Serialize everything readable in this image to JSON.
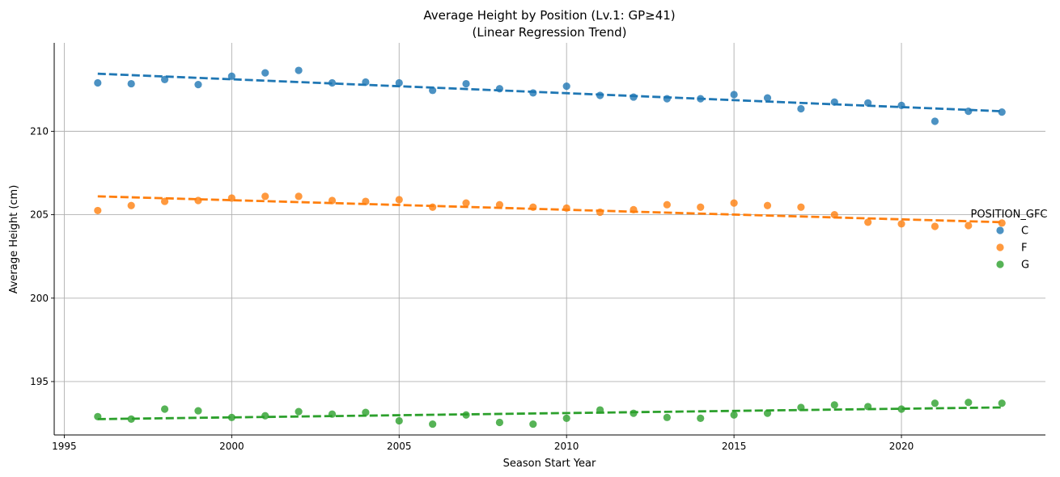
{
  "chart_data": {
    "type": "scatter",
    "title": "Average Height by Position (Lv.1: GP≥41)",
    "subtitle": "(Linear Regression Trend)",
    "xlabel": "Season Start Year",
    "ylabel": "Average Height (cm)",
    "xlim": [
      1994.7,
      2024.3
    ],
    "ylim": [
      191.8,
      215.3
    ],
    "xticks": [
      1995,
      2000,
      2005,
      2010,
      2015,
      2020
    ],
    "yticks": [
      195,
      200,
      205,
      210
    ],
    "grid": true,
    "trendline": "linear regression (dashed)",
    "legend": {
      "title": "POSITION_GFC",
      "placement": "right"
    },
    "x": [
      1996,
      1997,
      1998,
      1999,
      2000,
      2001,
      2002,
      2003,
      2004,
      2005,
      2006,
      2007,
      2008,
      2009,
      2010,
      2011,
      2012,
      2013,
      2014,
      2015,
      2016,
      2017,
      2018,
      2019,
      2020,
      2021,
      2022,
      2023
    ],
    "series": [
      {
        "name": "C",
        "color": "#1f77b4",
        "values": [
          212.9,
          212.85,
          213.1,
          212.8,
          213.3,
          213.5,
          213.65,
          212.9,
          212.95,
          212.9,
          212.45,
          212.85,
          212.55,
          212.3,
          212.7,
          212.15,
          212.05,
          211.95,
          211.95,
          212.2,
          212.0,
          211.35,
          211.75,
          211.7,
          211.55,
          210.6,
          211.2,
          211.15
        ],
        "trend": [
          213.45,
          211.2
        ]
      },
      {
        "name": "F",
        "color": "#ff7f0e",
        "values": [
          205.25,
          205.55,
          205.8,
          205.85,
          206.0,
          206.1,
          206.1,
          205.85,
          205.8,
          205.9,
          205.45,
          205.7,
          205.6,
          205.45,
          205.4,
          205.15,
          205.3,
          205.6,
          205.45,
          205.7,
          205.55,
          205.45,
          205.0,
          204.55,
          204.45,
          204.3,
          204.35,
          204.5
        ],
        "trend": [
          206.1,
          204.55
        ]
      },
      {
        "name": "G",
        "color": "#2ca02c",
        "values": [
          192.9,
          192.75,
          193.35,
          193.25,
          192.85,
          192.95,
          193.2,
          193.05,
          193.15,
          192.65,
          192.45,
          193.0,
          192.55,
          192.45,
          192.8,
          193.3,
          193.1,
          192.85,
          192.8,
          193.0,
          193.1,
          193.45,
          193.6,
          193.5,
          193.35,
          193.7,
          193.75,
          193.7
        ],
        "trend": [
          192.75,
          193.45
        ]
      }
    ]
  }
}
